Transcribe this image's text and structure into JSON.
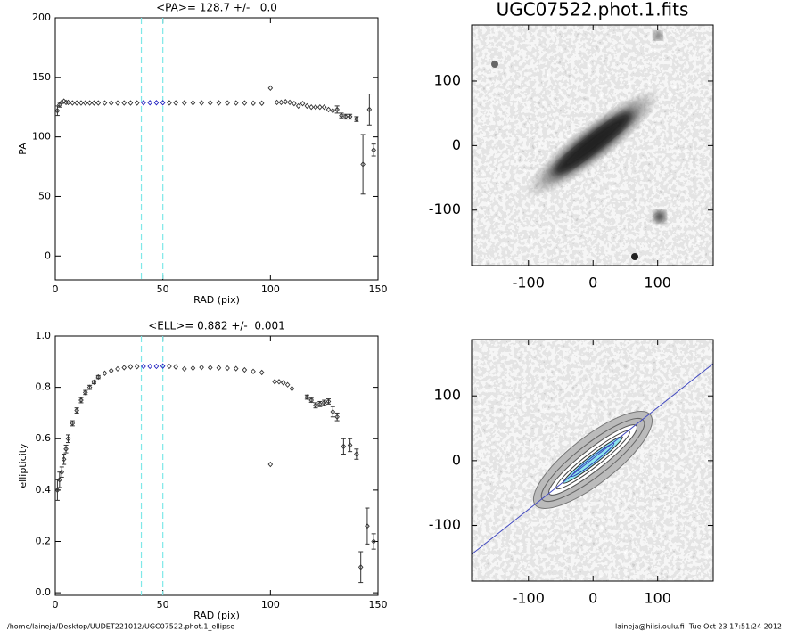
{
  "chart_data": [
    {
      "type": "scatter",
      "title": "<PA>= 128.7 +/-   0.0",
      "xlabel": "RAD (pix)",
      "ylabel": "PA",
      "xlim": [
        0,
        150
      ],
      "ylim": [
        -20,
        200
      ],
      "xticks": [
        0,
        50,
        100,
        150
      ],
      "yticks": [
        0,
        50,
        100,
        150,
        200
      ],
      "vlines": [
        40,
        50
      ],
      "vline_color": "#7ee8e8",
      "color": "#333333",
      "highlight_color": "#2020c0",
      "x": [
        1,
        2,
        3,
        4,
        5,
        6,
        8,
        10,
        12,
        14,
        16,
        18,
        20,
        23,
        26,
        29,
        32,
        35,
        38,
        41,
        44,
        47,
        50,
        53,
        56,
        60,
        64,
        68,
        72,
        76,
        80,
        84,
        88,
        92,
        96,
        100,
        103,
        105,
        107,
        109,
        111,
        113,
        115,
        117,
        119,
        121,
        123,
        125,
        127,
        129,
        131,
        133,
        135,
        137,
        140,
        143,
        146,
        148
      ],
      "values": [
        122,
        127,
        129,
        130,
        129,
        129,
        128.5,
        128.5,
        128.5,
        128.5,
        128.5,
        128.5,
        128.5,
        128.5,
        128.5,
        128.5,
        128.5,
        128.5,
        128.5,
        128.7,
        128.7,
        128.7,
        128.7,
        128.6,
        128.6,
        128.6,
        128.6,
        128.6,
        128.6,
        128.6,
        128.5,
        128.5,
        128.5,
        128.3,
        128.3,
        141,
        129,
        129,
        129.5,
        129,
        128,
        126,
        128,
        126,
        125,
        125,
        125,
        125,
        123,
        122,
        123,
        118,
        117,
        117,
        115,
        77,
        123,
        89
      ],
      "errors": [
        4,
        2,
        1,
        0.5,
        0.5,
        0.3,
        0.3,
        0.3,
        0.3,
        0.3,
        0.3,
        0.3,
        0.3,
        0.3,
        0.3,
        0.3,
        0.3,
        0.3,
        0.3,
        0.3,
        0.3,
        0.3,
        0.3,
        0.3,
        0.3,
        0.3,
        0.3,
        0.3,
        0.3,
        0.3,
        0.3,
        0.3,
        0.3,
        0.3,
        0.3,
        0.5,
        0.5,
        0.5,
        0.5,
        0.5,
        0.5,
        0.8,
        0.8,
        0.8,
        0.8,
        0.8,
        0.8,
        0.8,
        0.8,
        0.8,
        3,
        2,
        2,
        2,
        2,
        25,
        13,
        5
      ]
    },
    {
      "type": "scatter",
      "title": "<ELL>= 0.882 +/-  0.001",
      "xlabel": "RAD (pix)",
      "ylabel": "ellipticity",
      "xlim": [
        0,
        150
      ],
      "ylim": [
        -0.01,
        1.0
      ],
      "xticks": [
        0,
        50,
        100,
        150
      ],
      "yticks": [
        {
          "value": 0,
          "label": "0.0"
        },
        {
          "value": 0.2,
          "label": "0.2"
        },
        {
          "value": 0.4,
          "label": "0.4"
        },
        {
          "value": 0.6,
          "label": "0.6"
        },
        {
          "value": 0.8,
          "label": "0.8"
        },
        {
          "value": 1,
          "label": "1.0"
        }
      ],
      "vlines": [
        40,
        50
      ],
      "vline_color": "#7ee8e8",
      "color": "#333333",
      "highlight_color": "#2020c0",
      "x": [
        1,
        2,
        3,
        4,
        5,
        6,
        8,
        10,
        12,
        14,
        16,
        18,
        20,
        23,
        26,
        29,
        32,
        35,
        38,
        41,
        44,
        47,
        50,
        53,
        56,
        60,
        64,
        68,
        72,
        76,
        80,
        84,
        88,
        92,
        96,
        100,
        102,
        104,
        106,
        108,
        110,
        117,
        119,
        121,
        123,
        125,
        127,
        129,
        131,
        134,
        137,
        140,
        142,
        145,
        148
      ],
      "values": [
        0.4,
        0.44,
        0.47,
        0.52,
        0.56,
        0.6,
        0.66,
        0.71,
        0.75,
        0.78,
        0.8,
        0.82,
        0.84,
        0.855,
        0.865,
        0.872,
        0.877,
        0.88,
        0.881,
        0.882,
        0.882,
        0.882,
        0.883,
        0.882,
        0.88,
        0.872,
        0.875,
        0.878,
        0.877,
        0.876,
        0.875,
        0.873,
        0.868,
        0.862,
        0.858,
        0.5,
        0.822,
        0.822,
        0.818,
        0.81,
        0.795,
        0.762,
        0.75,
        0.73,
        0.735,
        0.74,
        0.745,
        0.705,
        0.685,
        0.57,
        0.575,
        0.54,
        0.1,
        0.26,
        0.2
      ],
      "errors": [
        0.04,
        0.03,
        0.02,
        0.02,
        0.015,
        0.015,
        0.01,
        0.01,
        0.01,
        0.008,
        0.008,
        0.006,
        0.006,
        0.005,
        0.004,
        0.004,
        0.003,
        0.003,
        0.002,
        0.002,
        0.002,
        0.002,
        0.002,
        0.002,
        0.002,
        0.002,
        0.002,
        0.002,
        0.002,
        0.002,
        0.002,
        0.002,
        0.002,
        0.002,
        0.002,
        0.005,
        0.004,
        0.004,
        0.004,
        0.004,
        0.005,
        0.008,
        0.008,
        0.01,
        0.01,
        0.01,
        0.01,
        0.02,
        0.015,
        0.03,
        0.025,
        0.02,
        0.06,
        0.07,
        0.03
      ]
    },
    {
      "type": "image",
      "title": "UGC07522.phot.1.fits",
      "xlim": [
        -188,
        186
      ],
      "ylim": [
        -186,
        187
      ],
      "xticks": [
        -100,
        0,
        100
      ],
      "yticks": [
        -100,
        0,
        100
      ]
    },
    {
      "type": "image",
      "xlim": [
        -188,
        186
      ],
      "ylim": [
        -186,
        187
      ],
      "xticks": [
        -100,
        0,
        100
      ],
      "yticks": [
        -100,
        0,
        100
      ]
    }
  ],
  "footer": {
    "left": "/home/laineja/Desktop/UUDET221012/UGC07522.phot.1_ellipse",
    "right": "laineja@hiisi.oulu.fi  Tue Oct 23 17:51:24 2012"
  }
}
